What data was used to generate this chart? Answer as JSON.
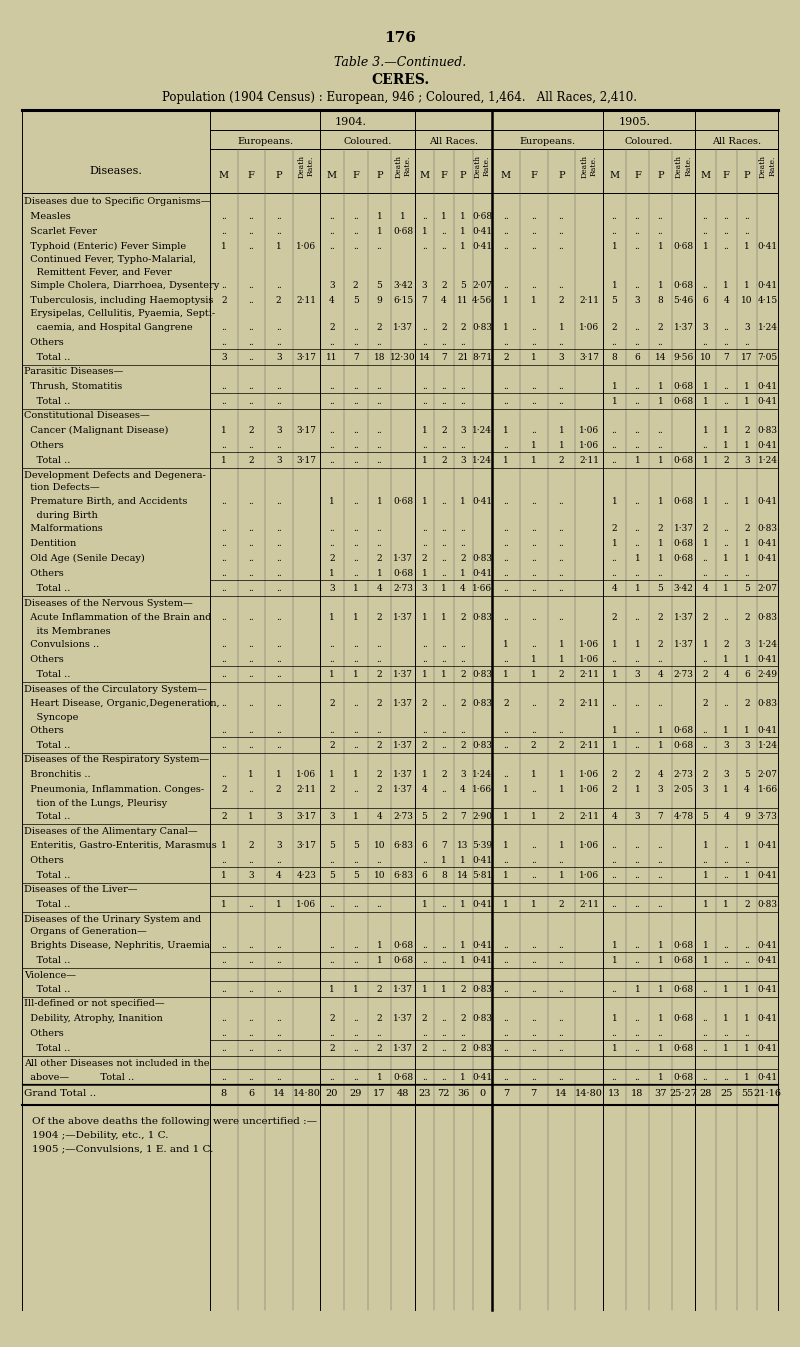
{
  "page_number": "176",
  "table_title": "Table 3.—Continued.",
  "subtitle": "CERES.",
  "population_line": "Population (1904 Census) : European, 946 ; Coloured, 1,464.   All Races, 2,410.",
  "bg_color": "#cec9a0",
  "footnote_lines": [
    "Of the above deaths the following were uncertified :—",
    "1904 ;—Debility, etc., 1 C.",
    "1905 ;—Convulsions, 1 E. and 1 C."
  ]
}
